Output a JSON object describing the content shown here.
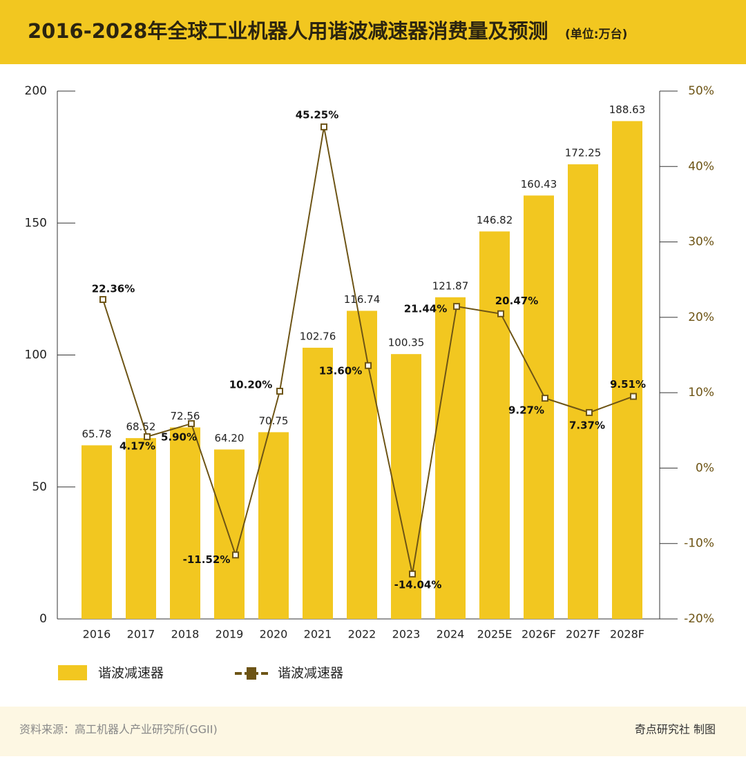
{
  "chart_data": {
    "type": "bar-line",
    "title": "2016-2028年全球工业机器人用谐波减速器消费量及预测",
    "subtitle": "(单位:万台)",
    "categories": [
      "2016",
      "2017",
      "2018",
      "2019",
      "2020",
      "2021",
      "2022",
      "2023",
      "2024",
      "2025E",
      "2026F",
      "2027F",
      "2028F"
    ],
    "series": [
      {
        "name": "谐波减速器",
        "type": "bar",
        "color": "#f2c720",
        "values": [
          65.78,
          68.52,
          72.56,
          64.2,
          70.75,
          102.76,
          116.74,
          100.35,
          121.87,
          146.82,
          160.43,
          172.25,
          188.63
        ],
        "value_labels": [
          "65.78",
          "68.52",
          "72.56",
          "64.20",
          "70.75",
          "102.76",
          "116.74",
          "100.35",
          "121.87",
          "146.82",
          "160.43",
          "172.25",
          "188.63"
        ]
      },
      {
        "name": "谐波减速器",
        "type": "line",
        "axis": "y2",
        "color": "#6d5415",
        "values": [
          22.36,
          4.17,
          5.9,
          -11.52,
          10.2,
          45.25,
          13.6,
          -14.04,
          21.44,
          20.47,
          9.27,
          7.37,
          9.51
        ],
        "value_labels": [
          "22.36%",
          "4.17%",
          "5.90%",
          "-11.52%",
          "10.20%",
          "45.25%",
          "13.60%",
          "-14.04%",
          "21.44%",
          "20.47%",
          "9.27%",
          "7.37%",
          "9.51%"
        ]
      }
    ],
    "ylim": [
      0,
      200
    ],
    "yticks": [
      0,
      50,
      100,
      150,
      200
    ],
    "y2lim": [
      -20,
      50
    ],
    "y2ticks": [
      {
        "value": -20,
        "label": "-20%"
      },
      {
        "value": -10,
        "label": "-10%"
      },
      {
        "value": 0,
        "label": "0%"
      },
      {
        "value": 10,
        "label": "10%"
      },
      {
        "value": 20,
        "label": "20%"
      },
      {
        "value": 30,
        "label": "30%"
      },
      {
        "value": 40,
        "label": "40%"
      },
      {
        "value": 50,
        "label": "50%"
      }
    ],
    "source": "资料来源：高工机器人产业研究所(GGII)",
    "credit": "奇点研究社 制图"
  }
}
